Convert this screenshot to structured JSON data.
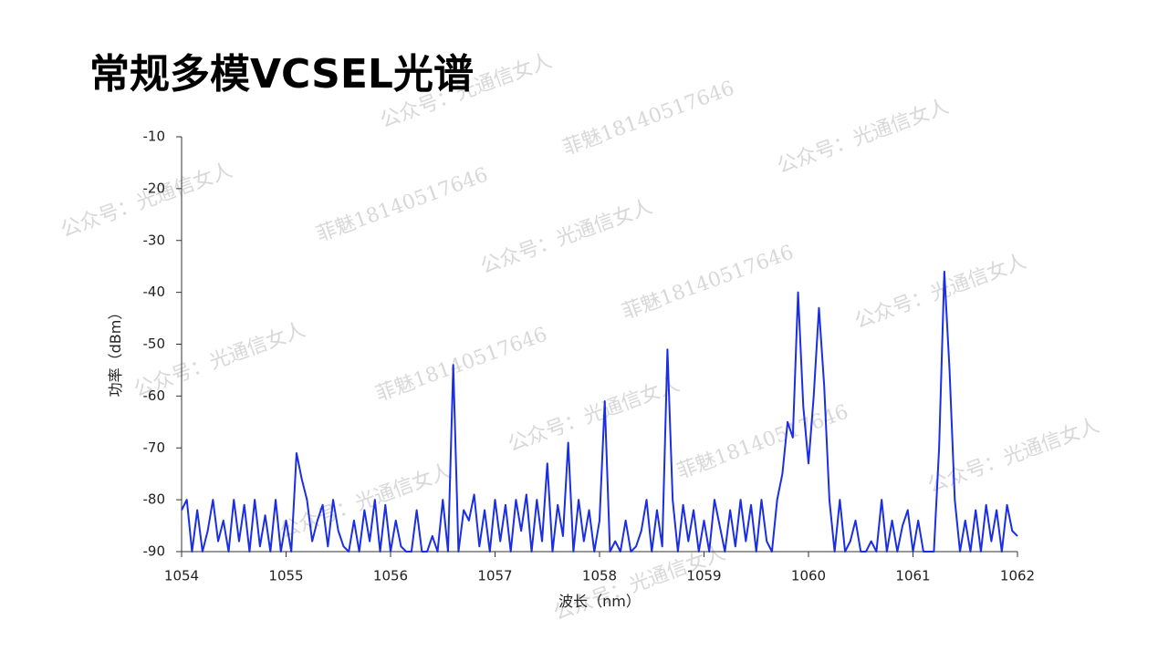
{
  "chart_data": {
    "type": "line",
    "title": "常规多模VCSEL光谱",
    "xlabel": "波长（nm）",
    "ylabel": "功率（dBm）",
    "color": "#1a2ee6",
    "xlim": [
      1054,
      1062
    ],
    "xticks": [
      1054,
      1055,
      1056,
      1057,
      1058,
      1059,
      1060,
      1061,
      1062
    ],
    "ylim": [
      -90,
      -10
    ],
    "yticks": [
      -10,
      -20,
      -30,
      -40,
      -50,
      -60,
      -70,
      -80,
      -90
    ],
    "watermarks": [
      "公众号：光通信女人",
      "菲魅18140517646"
    ],
    "x": [
      1054,
      1054.05,
      1054.1,
      1054.15,
      1054.2,
      1054.25,
      1054.3,
      1054.35,
      1054.4,
      1054.45,
      1054.5,
      1054.55,
      1054.6,
      1054.65,
      1054.7,
      1054.75,
      1054.8,
      1054.85,
      1054.9,
      1054.95,
      1055,
      1055.05,
      1055.1,
      1055.15,
      1055.2,
      1055.25,
      1055.3,
      1055.35,
      1055.4,
      1055.45,
      1055.5,
      1055.55,
      1055.6,
      1055.65,
      1055.7,
      1055.75,
      1055.8,
      1055.85,
      1055.9,
      1055.95,
      1056,
      1056.05,
      1056.1,
      1056.15,
      1056.2,
      1056.25,
      1056.3,
      1056.35,
      1056.4,
      1056.45,
      1056.5,
      1056.55,
      1056.6,
      1056.65,
      1056.7,
      1056.75,
      1056.8,
      1056.85,
      1056.9,
      1056.95,
      1057,
      1057.05,
      1057.1,
      1057.15,
      1057.2,
      1057.25,
      1057.3,
      1057.35,
      1057.4,
      1057.45,
      1057.5,
      1057.55,
      1057.6,
      1057.65,
      1057.7,
      1057.75,
      1057.8,
      1057.85,
      1057.9,
      1057.95,
      1058,
      1058.05,
      1058.1,
      1058.15,
      1058.2,
      1058.25,
      1058.3,
      1058.35,
      1058.4,
      1058.45,
      1058.5,
      1058.55,
      1058.6,
      1058.65,
      1058.7,
      1058.75,
      1058.8,
      1058.85,
      1058.9,
      1058.95,
      1059,
      1059.05,
      1059.1,
      1059.15,
      1059.2,
      1059.25,
      1059.3,
      1059.35,
      1059.4,
      1059.45,
      1059.5,
      1059.55,
      1059.6,
      1059.65,
      1059.7,
      1059.75,
      1059.8,
      1059.85,
      1059.9,
      1059.95,
      1060,
      1060.05,
      1060.1,
      1060.15,
      1060.2,
      1060.25,
      1060.3,
      1060.35,
      1060.4,
      1060.45,
      1060.5,
      1060.55,
      1060.6,
      1060.65,
      1060.7,
      1060.75,
      1060.8,
      1060.85,
      1060.9,
      1060.95,
      1061,
      1061.05,
      1061.1,
      1061.15,
      1061.2,
      1061.25,
      1061.3,
      1061.35,
      1061.4,
      1061.45,
      1061.5,
      1061.55,
      1061.6,
      1061.65,
      1061.7,
      1061.75,
      1061.8,
      1061.85,
      1061.9,
      1061.95,
      1062
    ],
    "values": [
      -82,
      -80,
      -90,
      -82,
      -90,
      -86,
      -80,
      -88,
      -84,
      -90,
      -80,
      -88,
      -81,
      -90,
      -80,
      -89,
      -83,
      -90,
      -80,
      -90,
      -84,
      -90,
      -71,
      -76,
      -80,
      -88,
      -84,
      -81,
      -89,
      -80,
      -86,
      -89,
      -90,
      -84,
      -90,
      -82,
      -88,
      -80,
      -90,
      -81,
      -90,
      -84,
      -89,
      -90,
      -90,
      -82,
      -90,
      -90,
      -87,
      -90,
      -80,
      -90,
      -54,
      -90,
      -82,
      -84,
      -79,
      -89,
      -82,
      -90,
      -80,
      -88,
      -81,
      -90,
      -80,
      -86,
      -79,
      -90,
      -80,
      -88,
      -73,
      -90,
      -81,
      -87,
      -69,
      -90,
      -80,
      -88,
      -82,
      -90,
      -84,
      -61,
      -90,
      -88,
      -90,
      -84,
      -90,
      -89,
      -86,
      -80,
      -90,
      -82,
      -89,
      -51,
      -80,
      -90,
      -81,
      -88,
      -82,
      -90,
      -84,
      -90,
      -80,
      -85,
      -90,
      -82,
      -89,
      -80,
      -88,
      -81,
      -90,
      -80,
      -88,
      -90,
      -80,
      -75,
      -65,
      -68,
      -40,
      -62,
      -73,
      -60,
      -43,
      -58,
      -80,
      -90,
      -80,
      -90,
      -88,
      -84,
      -90,
      -90,
      -88,
      -90,
      -80,
      -90,
      -84,
      -90,
      -85,
      -82,
      -90,
      -84,
      -90,
      -90,
      -90,
      -70,
      -36,
      -55,
      -80,
      -90,
      -84,
      -90,
      -82,
      -90,
      -81,
      -88,
      -82,
      -90,
      -81,
      -86,
      -87
    ]
  }
}
